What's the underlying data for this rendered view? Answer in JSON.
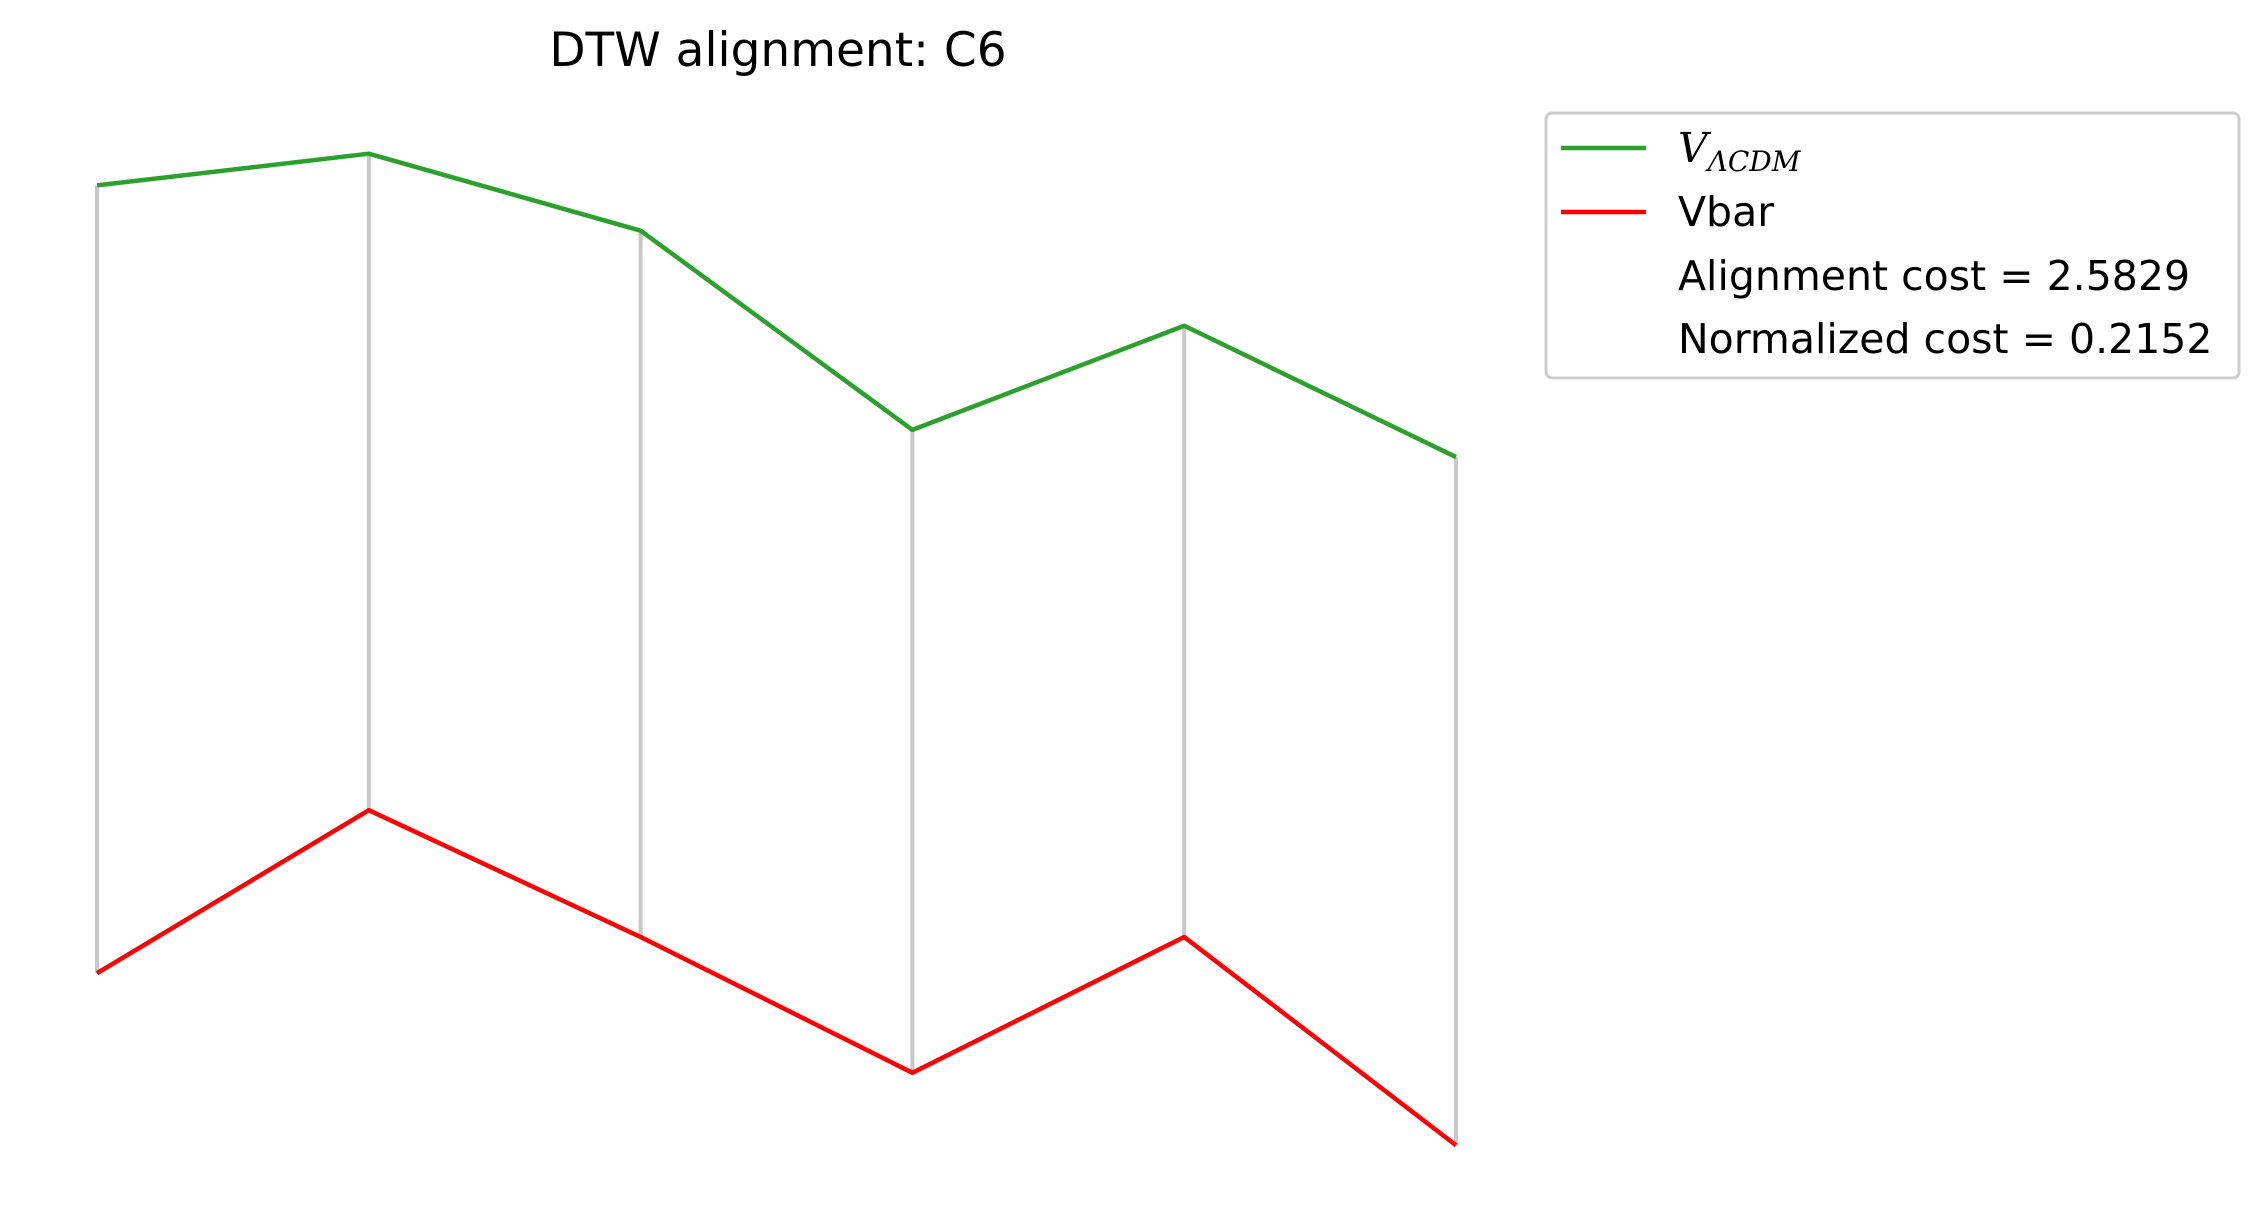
{
  "chart_data": {
    "type": "line",
    "title": "DTW alignment: C6",
    "xlabel": "",
    "ylabel": "",
    "axes_visible": false,
    "grid": false,
    "legend_position": "upper-right-outside",
    "x": [
      0,
      1,
      2,
      3,
      4,
      5
    ],
    "series": [
      {
        "name": "V_ΛCDM",
        "name_main": "V",
        "name_sub": "ΛCDM",
        "color": "#2ca02c",
        "values": [
          8.85,
          9.2,
          8.35,
          6.15,
          7.3,
          5.85
        ]
      },
      {
        "name": "Vbar",
        "color": "#ff0000",
        "values": [
          0.15,
          1.95,
          0.55,
          -0.95,
          0.55,
          -1.75
        ]
      }
    ],
    "alignment_pairs": [
      [
        0,
        0
      ],
      [
        1,
        1
      ],
      [
        2,
        2
      ],
      [
        3,
        3
      ],
      [
        4,
        4
      ],
      [
        5,
        5
      ]
    ],
    "alignment_color": "#c8c8c8",
    "legend_extra": [
      "Alignment cost = 2.5829",
      "Normalized cost = 0.2152"
    ],
    "ylim": [
      -2.2,
      9.55
    ]
  }
}
